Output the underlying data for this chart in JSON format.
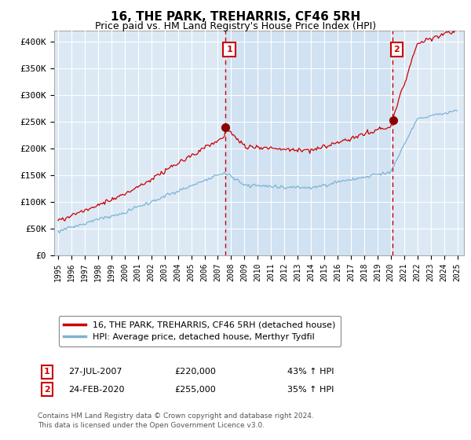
{
  "title": "16, THE PARK, TREHARRIS, CF46 5RH",
  "subtitle": "Price paid vs. HM Land Registry's House Price Index (HPI)",
  "plot_bg_color": "#dce9f5",
  "hpi_line_color": "#7fb3d3",
  "price_line_color": "#cc0000",
  "vline_color": "#cc0000",
  "annotation_box_color": "#cc0000",
  "shade_color": "#c8dcf0",
  "ylim": [
    0,
    420000
  ],
  "yticks": [
    0,
    50000,
    100000,
    150000,
    200000,
    250000,
    300000,
    350000,
    400000
  ],
  "sale1_date": 2007.57,
  "sale1_price": 220000,
  "sale2_date": 2020.15,
  "sale2_price": 255000,
  "legend_line1": "16, THE PARK, TREHARRIS, CF46 5RH (detached house)",
  "legend_line2": "HPI: Average price, detached house, Merthyr Tydfil",
  "note1_label": "1",
  "note1_date": "27-JUL-2007",
  "note1_price": "£220,000",
  "note1_hpi": "43% ↑ HPI",
  "note2_label": "2",
  "note2_date": "24-FEB-2020",
  "note2_price": "£255,000",
  "note2_hpi": "35% ↑ HPI",
  "footer": "Contains HM Land Registry data © Crown copyright and database right 2024.\nThis data is licensed under the Open Government Licence v3.0."
}
